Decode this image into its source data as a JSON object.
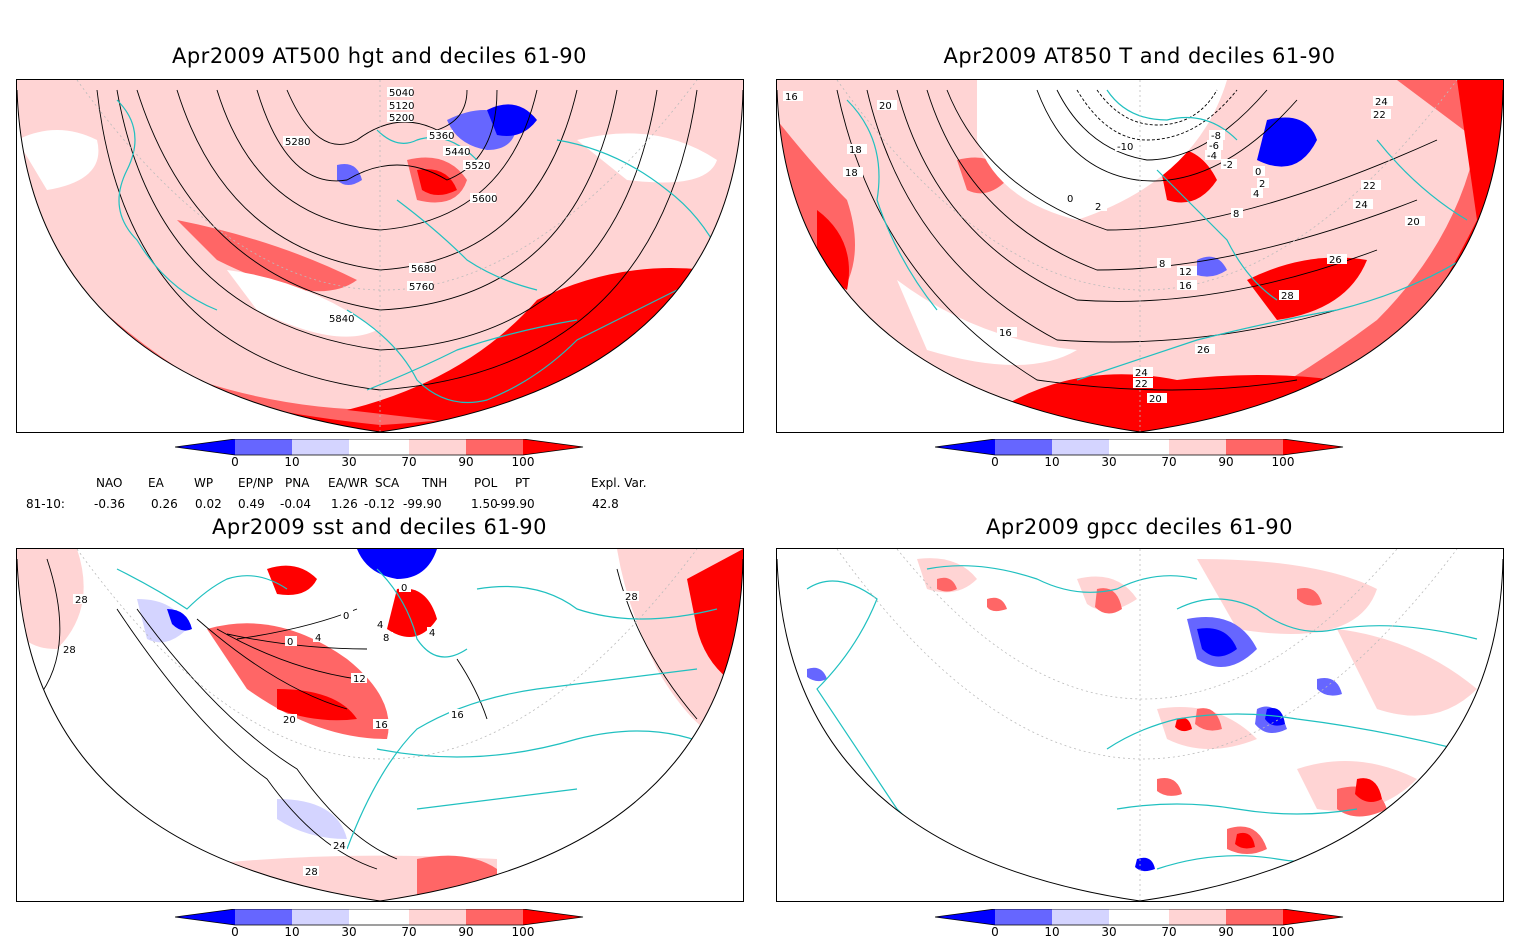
{
  "panels": [
    {
      "id": "p1",
      "title": "Apr2009 AT500 hgt and deciles 61-90",
      "contours": [
        "5040",
        "5120",
        "5200",
        "5280",
        "5360",
        "5440",
        "5520",
        "5600",
        "5680",
        "5760",
        "5840"
      ]
    },
    {
      "id": "p2",
      "title": "Apr2009 AT850 T and deciles 61-90",
      "contours": [
        "16",
        "20",
        "18",
        "18",
        "0",
        "2",
        "-10",
        "-8",
        "-6",
        "-4",
        "-2",
        "0",
        "2",
        "4",
        "8",
        "22",
        "24",
        "22",
        "24",
        "20",
        "26",
        "28",
        "8",
        "12",
        "16",
        "16",
        "26",
        "24",
        "22",
        "20"
      ]
    },
    {
      "id": "p3",
      "title": "Apr2009 sst and deciles 61-90",
      "contours": [
        "28",
        "28",
        "0",
        "4",
        "0",
        "4",
        "8",
        "4",
        "0",
        "12",
        "16",
        "20",
        "16",
        "24",
        "28",
        "28"
      ]
    },
    {
      "id": "p4",
      "title": "Apr2009 gpcc deciles 61-90",
      "contours": []
    }
  ],
  "colorbar": {
    "labels": [
      "0",
      "10",
      "30",
      "70",
      "90",
      "100"
    ],
    "colors": [
      "#0000ff",
      "#6666ff",
      "#d4d4ff",
      "#ffffff",
      "#ffd4d4",
      "#ff6666",
      "#ff0000"
    ]
  },
  "indices": {
    "row_label": "81-10:",
    "headers": [
      "NAO",
      "EA",
      "WP",
      "EP/NP",
      "PNA",
      "EA/WR",
      "SCA",
      "TNH",
      "POL",
      "PT",
      "Expl. Var."
    ],
    "values": [
      "-0.36",
      "0.26",
      "0.02",
      "0.49",
      "-0.04",
      "1.26",
      "-0.12",
      "-99.90",
      "1.50",
      "-99.90",
      "42.8"
    ]
  }
}
